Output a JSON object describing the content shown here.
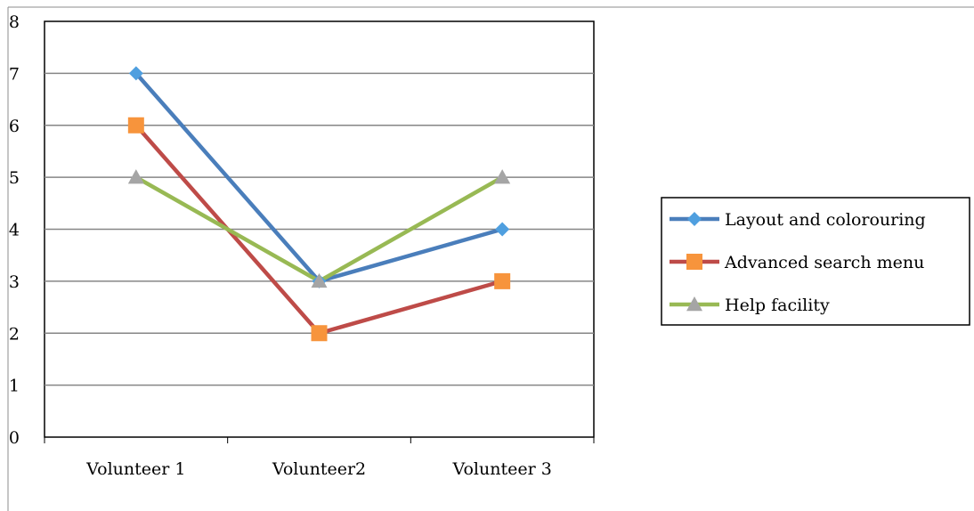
{
  "chart_data": {
    "type": "line",
    "categories": [
      "Volunteer 1",
      "Volunteer2",
      "Volunteer 3"
    ],
    "series": [
      {
        "name": "Layout and colorouring",
        "values": [
          7,
          3,
          4
        ],
        "color": "#4a7ebb",
        "marker": "diamond",
        "marker_color": "#4f9fdf"
      },
      {
        "name": "Advanced search menu",
        "values": [
          6,
          2,
          3
        ],
        "color": "#be4b48",
        "marker": "square",
        "marker_color": "#f7943c"
      },
      {
        "name": "Help facility",
        "values": [
          5,
          3,
          5
        ],
        "color": "#98b954",
        "marker": "triangle",
        "marker_color": "#a5a5a5"
      }
    ],
    "ylim": [
      0,
      8
    ],
    "yticks": [
      "0",
      "1",
      "2",
      "3",
      "4",
      "5",
      "6",
      "7",
      "8"
    ],
    "grid": true,
    "legend_position": "right"
  }
}
